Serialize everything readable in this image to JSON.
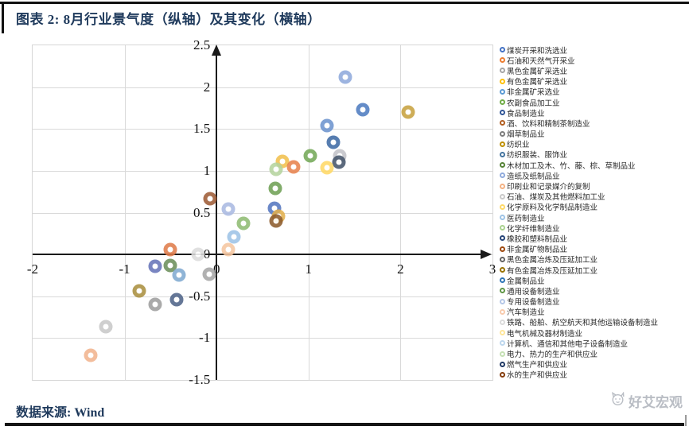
{
  "title": "图表 2: 8月行业景气度（纵轴）及其变化（横轴）",
  "source_note": "数据来源: Wind",
  "watermark": "好艾宏观",
  "chart_data": {
    "type": "scatter",
    "title": "8月行业景气度（纵轴）及其变化（横轴）",
    "grid": true,
    "legend_position": "right",
    "marker_style": "donut",
    "x_axis": {
      "min": -2,
      "max": 3,
      "ticks": [
        -2,
        -1,
        0,
        1,
        2,
        3
      ]
    },
    "y_axis": {
      "min": -1.5,
      "max": 2.5,
      "ticks": [
        2.5,
        2,
        1.5,
        1,
        0.5,
        0,
        -0.5,
        -1,
        -1.5
      ]
    },
    "series": [
      {
        "label": "煤炭开采和洗选业",
        "color": "#4472C4"
      },
      {
        "label": "石油和天然气开采业",
        "color": "#ED7D31"
      },
      {
        "label": "黑色金属矿采选业",
        "color": "#A5A5A5"
      },
      {
        "label": "有色金属矿采选业",
        "color": "#FFC000"
      },
      {
        "label": "非金属矿采选业",
        "color": "#5B9BD5"
      },
      {
        "label": "农副食品加工业",
        "color": "#70AD47"
      },
      {
        "label": "食品制造业",
        "color": "#2F5597"
      },
      {
        "label": "酒、饮料和精制茶制造业",
        "color": "#B25E20"
      },
      {
        "label": "烟草制品业",
        "color": "#7C7C7C"
      },
      {
        "label": "纺织业",
        "color": "#BF9000"
      },
      {
        "label": "纺织服装、服饰业",
        "color": "#44749F"
      },
      {
        "label": "木材加工及木、竹、藤、棕、草制品业",
        "color": "#548235"
      },
      {
        "label": "造纸及纸制品业",
        "color": "#8FAADC"
      },
      {
        "label": "印刷业和记录媒介的复制",
        "color": "#F4B183"
      },
      {
        "label": "石油、煤炭及其他燃料加工业",
        "color": "#C9C9C9"
      },
      {
        "label": "化学原料及化学制品制造业",
        "color": "#FFD966"
      },
      {
        "label": "医药制造业",
        "color": "#9DC3E6"
      },
      {
        "label": "化学纤维制造业",
        "color": "#A9D18E"
      },
      {
        "label": "橡胶和塑料制品业",
        "color": "#264478"
      },
      {
        "label": "非金属矿物制品业",
        "color": "#9E480E"
      },
      {
        "label": "黑色金属冶炼及压延加工业",
        "color": "#636363"
      },
      {
        "label": "有色金属冶炼及压延加工业",
        "color": "#997300"
      },
      {
        "label": "金属制品业",
        "color": "#2E75B6"
      },
      {
        "label": "通用设备制造业",
        "color": "#5E9645"
      },
      {
        "label": "专用设备制造业",
        "color": "#B4C7E7"
      },
      {
        "label": "汽车制造业",
        "color": "#F8CBAD"
      },
      {
        "label": "铁路、船舶、航空航天和其他运输设备制造业",
        "color": "#DBDBDB"
      },
      {
        "label": "电气机械及器材制造业",
        "color": "#FFE699"
      },
      {
        "label": "计算机、通信和其他电子设备制造业",
        "color": "#BDD7EE"
      },
      {
        "label": "电力、热力的生产和供应业",
        "color": "#C5E0B4"
      },
      {
        "label": "燃气生产和供应业",
        "color": "#1F3864"
      },
      {
        "label": "水的生产和供应业",
        "color": "#843C0C"
      }
    ],
    "points": [
      {
        "x": 1.4,
        "y": 2.12,
        "color": "#8FAADC"
      },
      {
        "x": 1.59,
        "y": 1.73,
        "color": "#4E7CC0"
      },
      {
        "x": 2.08,
        "y": 1.7,
        "color": "#C7A13F"
      },
      {
        "x": 1.2,
        "y": 1.54,
        "color": "#6D94CE"
      },
      {
        "x": 1.27,
        "y": 1.34,
        "color": "#3D6AA5"
      },
      {
        "x": 1.34,
        "y": 1.18,
        "color": "#C3C3C9"
      },
      {
        "x": 1.33,
        "y": 1.1,
        "color": "#44546A"
      },
      {
        "x": 1.02,
        "y": 1.18,
        "color": "#74A857"
      },
      {
        "x": 1.2,
        "y": 1.04,
        "color": "#FFD966"
      },
      {
        "x": 0.72,
        "y": 1.11,
        "color": "#F2C14E"
      },
      {
        "x": 0.84,
        "y": 1.05,
        "color": "#E8834E"
      },
      {
        "x": 0.65,
        "y": 1.02,
        "color": "#B5D49E"
      },
      {
        "x": 0.64,
        "y": 0.79,
        "color": "#6FA055"
      },
      {
        "x": -0.07,
        "y": 0.67,
        "color": "#9E5B36"
      },
      {
        "x": 0.13,
        "y": 0.54,
        "color": "#AAB9E2"
      },
      {
        "x": 0.63,
        "y": 0.55,
        "color": "#5577C0"
      },
      {
        "x": 0.67,
        "y": 0.46,
        "color": "#E3B04E"
      },
      {
        "x": 0.65,
        "y": 0.4,
        "color": "#8C5A2B"
      },
      {
        "x": 0.29,
        "y": 0.37,
        "color": "#8FBC72"
      },
      {
        "x": 0.19,
        "y": 0.21,
        "color": "#9DC3E6"
      },
      {
        "x": 0.13,
        "y": 0.06,
        "color": "#F5C6A0"
      },
      {
        "x": -0.2,
        "y": 0.0,
        "color": "#DCDCDC"
      },
      {
        "x": -0.5,
        "y": 0.06,
        "color": "#E07B4A"
      },
      {
        "x": -0.67,
        "y": -0.14,
        "color": "#6674B8"
      },
      {
        "x": -0.5,
        "y": -0.13,
        "color": "#6C8F5A"
      },
      {
        "x": -0.41,
        "y": -0.25,
        "color": "#7FA9D1"
      },
      {
        "x": -0.08,
        "y": -0.24,
        "color": "#A6A6A6"
      },
      {
        "x": -0.84,
        "y": -0.44,
        "color": "#A98F3F"
      },
      {
        "x": -0.67,
        "y": -0.6,
        "color": "#9E9E9E"
      },
      {
        "x": -0.43,
        "y": -0.54,
        "color": "#4F6488"
      },
      {
        "x": -1.2,
        "y": -0.86,
        "color": "#C8C8C8"
      },
      {
        "x": -1.37,
        "y": -1.21,
        "color": "#F2B48E"
      }
    ]
  }
}
